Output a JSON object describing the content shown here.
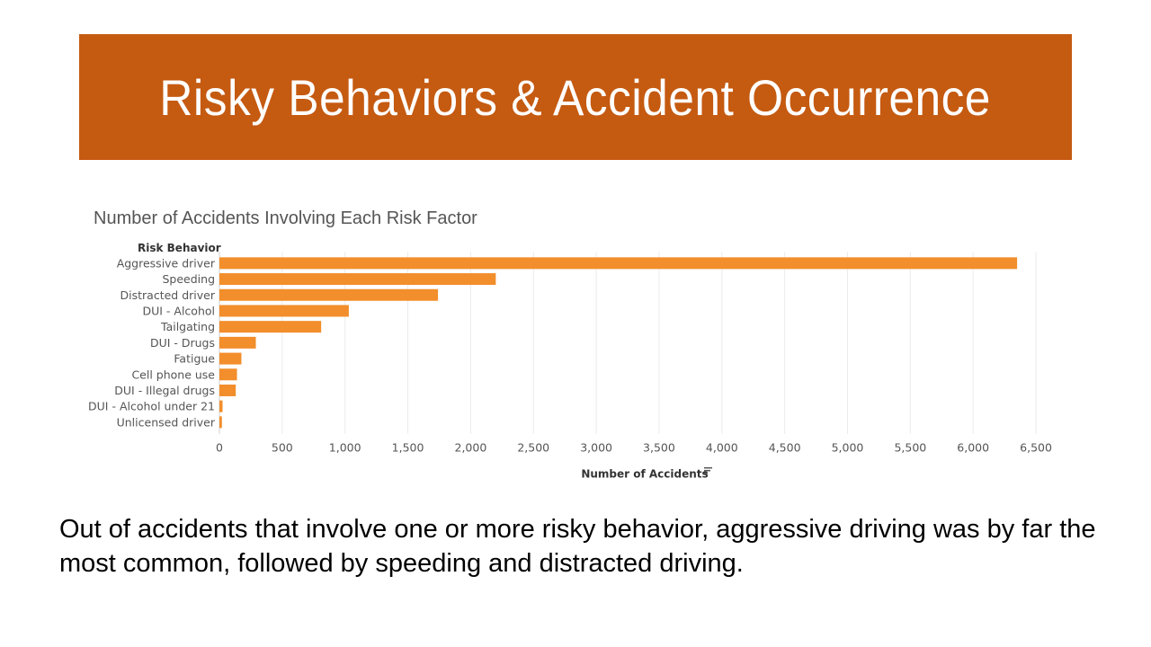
{
  "slide": {
    "title": "Risky Behaviors & Accident Occurrence",
    "caption": "Out of accidents that involve one or more risky behavior, aggressive driving was by far the most common, followed by speeding and distracted driving."
  },
  "colors": {
    "banner": "#c55a11",
    "bar": "#f28e2b",
    "grid": "#ebebeb",
    "label_text": "#555555"
  },
  "chart_data": {
    "type": "bar",
    "orientation": "horizontal",
    "title": "Number of Accidents Involving Each Risk Factor",
    "ylabel": "Risk Behavior",
    "xlabel": "Number of Accidents",
    "xlim": [
      0,
      6700
    ],
    "x_ticks": [
      0,
      500,
      1000,
      1500,
      2000,
      2500,
      3000,
      3500,
      4000,
      4500,
      5000,
      5500,
      6000,
      6500
    ],
    "x_tick_labels": [
      "0",
      "500",
      "1,000",
      "1,500",
      "2,000",
      "2,500",
      "3,000",
      "3,500",
      "4,000",
      "4,500",
      "5,000",
      "5,500",
      "6,000",
      "6,500"
    ],
    "grid": true,
    "categories": [
      "Aggressive driver",
      "Speeding",
      "Distracted driver",
      "DUI - Alcohol",
      "Tailgating",
      "DUI - Drugs",
      "Fatigue",
      "Cell phone use",
      "DUI - Illegal drugs",
      "DUI - Alcohol under 21",
      "Unlicensed driver"
    ],
    "values": [
      6350,
      2200,
      1740,
      1030,
      810,
      290,
      175,
      140,
      130,
      25,
      20
    ],
    "sort_icon": "sort-descending-icon"
  }
}
